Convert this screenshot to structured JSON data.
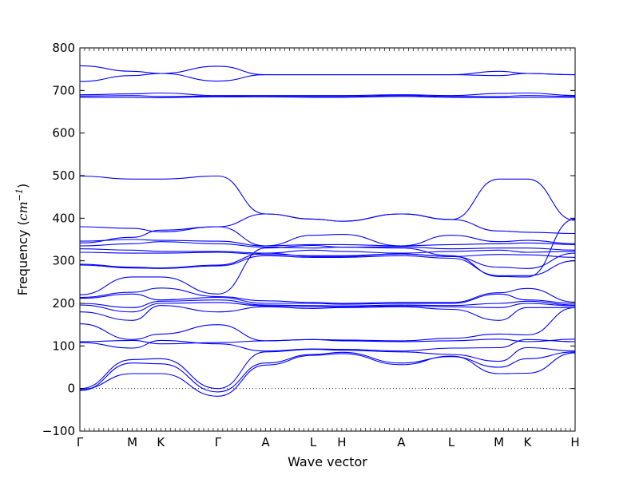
{
  "chart_data": {
    "type": "line",
    "xlabel": "Wave vector",
    "ylabel": "Frequency (cm⁻¹)",
    "ylabel_unit_base": "cm",
    "ylabel_unit_exp": "−1",
    "ylabel_prefix": "Frequency (",
    "ylabel_suffix": ")",
    "ylim": [
      -100,
      800
    ],
    "yticks": [
      {
        "value": -100,
        "label": "−100"
      },
      {
        "value": 0,
        "label": "0"
      },
      {
        "value": 100,
        "label": "100"
      },
      {
        "value": 200,
        "label": "200"
      },
      {
        "value": 300,
        "label": "300"
      },
      {
        "value": 400,
        "label": "400"
      },
      {
        "value": 500,
        "label": "500"
      },
      {
        "value": 600,
        "label": "600"
      },
      {
        "value": 700,
        "label": "700"
      },
      {
        "value": 800,
        "label": "800"
      }
    ],
    "xlim": [
      0,
      10.4
    ],
    "high_symmetry_points": [
      {
        "x": 0.0,
        "label": "Γ"
      },
      {
        "x": 1.1,
        "label": "M"
      },
      {
        "x": 1.7,
        "label": "K"
      },
      {
        "x": 2.9,
        "label": "Γ"
      },
      {
        "x": 3.9,
        "label": "A"
      },
      {
        "x": 4.9,
        "label": "L"
      },
      {
        "x": 5.5,
        "label": "H"
      },
      {
        "x": 6.75,
        "label": "A"
      },
      {
        "x": 7.8,
        "label": "L"
      },
      {
        "x": 8.8,
        "label": "M"
      },
      {
        "x": 9.4,
        "label": "K"
      },
      {
        "x": 10.4,
        "label": "H"
      }
    ],
    "zero_line": true,
    "line_color": "#0000ff",
    "bands": [
      {
        "x": [
          0,
          1.1,
          1.7,
          2.9,
          3.9,
          4.9,
          5.5,
          6.75,
          7.8,
          8.8,
          9.4,
          10.4
        ],
        "y": [
          758,
          745,
          740,
          757,
          737,
          737,
          737,
          737,
          737,
          735,
          740,
          737
        ]
      },
      {
        "x": [
          0,
          1.1,
          1.7,
          2.9,
          3.9,
          4.9,
          5.5,
          6.75,
          7.8,
          8.8,
          9.4,
          10.4
        ],
        "y": [
          721,
          735,
          740,
          722,
          737,
          737,
          737,
          737,
          737,
          745,
          740,
          737
        ]
      },
      {
        "x": [
          0,
          1.1,
          1.7,
          2.9,
          3.9,
          4.9,
          5.5,
          6.75,
          7.8,
          8.8,
          9.4,
          10.4
        ],
        "y": [
          690,
          692,
          694,
          688,
          688,
          688,
          688,
          690,
          688,
          693,
          694,
          688
        ]
      },
      {
        "x": [
          0,
          1.1,
          1.7,
          2.9,
          3.9,
          4.9,
          5.5,
          6.75,
          7.8,
          8.8,
          9.4,
          10.4
        ],
        "y": [
          687,
          688,
          686,
          687,
          686,
          686,
          686,
          688,
          686,
          686,
          688,
          686
        ]
      },
      {
        "x": [
          0,
          1.1,
          1.7,
          2.9,
          3.9,
          4.9,
          5.5,
          6.75,
          7.8,
          8.8,
          9.4,
          10.4
        ],
        "y": [
          684,
          684,
          683,
          685,
          685,
          684,
          684,
          686,
          684,
          683,
          684,
          684
        ]
      },
      {
        "x": [
          0,
          1.1,
          1.7,
          2.9,
          3.9,
          4.9,
          5.5,
          6.75,
          7.8,
          8.8,
          9.4,
          10.4
        ],
        "y": [
          499,
          492,
          492,
          499,
          410,
          398,
          393,
          410,
          397,
          492,
          492,
          395
        ]
      },
      {
        "x": [
          0,
          1.1,
          1.7,
          2.9,
          3.9,
          4.9,
          5.5,
          6.75,
          7.8,
          8.8,
          9.4,
          10.4
        ],
        "y": [
          380,
          376,
          368,
          380,
          410,
          398,
          393,
          410,
          397,
          370,
          367,
          364
        ]
      },
      {
        "x": [
          0,
          1.1,
          1.7,
          2.9,
          3.9,
          4.9,
          5.5,
          6.75,
          7.8,
          8.8,
          9.4,
          10.4
        ],
        "y": [
          346,
          350,
          348,
          346,
          335,
          360,
          362,
          335,
          360,
          345,
          348,
          340
        ]
      },
      {
        "x": [
          0,
          1.1,
          1.7,
          2.9,
          3.9,
          4.9,
          5.5,
          6.75,
          7.8,
          8.8,
          9.4,
          10.4
        ],
        "y": [
          342,
          355,
          372,
          380,
          335,
          338,
          338,
          335,
          338,
          340,
          342,
          338
        ]
      },
      {
        "x": [
          0,
          1.1,
          1.7,
          2.9,
          3.9,
          4.9,
          5.5,
          6.75,
          7.8,
          8.8,
          9.4,
          10.4
        ],
        "y": [
          335,
          340,
          345,
          340,
          332,
          330,
          332,
          333,
          328,
          330,
          330,
          325
        ]
      },
      {
        "x": [
          0,
          1.1,
          1.7,
          2.9,
          3.9,
          4.9,
          5.5,
          6.75,
          7.8,
          8.8,
          9.4,
          10.4
        ],
        "y": [
          328,
          325,
          322,
          322,
          318,
          325,
          322,
          318,
          322,
          325,
          320,
          322
        ]
      },
      {
        "x": [
          0,
          1.1,
          1.7,
          2.9,
          3.9,
          4.9,
          5.5,
          6.75,
          7.8,
          8.8,
          9.4,
          10.4
        ],
        "y": [
          320,
          318,
          318,
          320,
          315,
          312,
          312,
          316,
          310,
          315,
          314,
          308
        ]
      },
      {
        "x": [
          0,
          1.1,
          1.7,
          2.9,
          3.9,
          4.9,
          5.5,
          6.75,
          7.8,
          8.8,
          9.4,
          10.4
        ],
        "y": [
          292,
          285,
          283,
          290,
          318,
          310,
          310,
          316,
          310,
          285,
          282,
          318
        ]
      },
      {
        "x": [
          0,
          1.1,
          1.7,
          2.9,
          3.9,
          4.9,
          5.5,
          6.75,
          7.8,
          8.8,
          9.4,
          10.4
        ],
        "y": [
          290,
          283,
          282,
          288,
          312,
          308,
          308,
          312,
          306,
          265,
          265,
          300
        ]
      },
      {
        "x": [
          0,
          1.1,
          1.7,
          2.9,
          3.9,
          4.9,
          5.5,
          6.75,
          7.8,
          8.8,
          9.4,
          10.4
        ],
        "y": [
          220,
          262,
          262,
          222,
          330,
          336,
          332,
          330,
          312,
          263,
          262,
          398
        ]
      },
      {
        "x": [
          0,
          1.1,
          1.7,
          2.9,
          3.9,
          4.9,
          5.5,
          6.75,
          7.8,
          8.8,
          9.4,
          10.4
        ],
        "y": [
          214,
          226,
          236,
          216,
          206,
          202,
          200,
          202,
          202,
          225,
          235,
          203
        ]
      },
      {
        "x": [
          0,
          1.1,
          1.7,
          2.9,
          3.9,
          4.9,
          5.5,
          6.75,
          7.8,
          8.8,
          9.4,
          10.4
        ],
        "y": [
          212,
          222,
          208,
          214,
          200,
          200,
          198,
          200,
          200,
          222,
          208,
          200
        ]
      },
      {
        "x": [
          0,
          1.1,
          1.7,
          2.9,
          3.9,
          4.9,
          5.5,
          6.75,
          7.8,
          8.8,
          9.4,
          10.4
        ],
        "y": [
          200,
          190,
          205,
          208,
          196,
          195,
          194,
          196,
          195,
          200,
          205,
          196
        ]
      },
      {
        "x": [
          0,
          1.1,
          1.7,
          2.9,
          3.9,
          4.9,
          5.5,
          6.75,
          7.8,
          8.8,
          9.4,
          10.4
        ],
        "y": [
          196,
          180,
          200,
          202,
          194,
          192,
          192,
          194,
          192,
          190,
          200,
          194
        ]
      },
      {
        "x": [
          0,
          1.1,
          1.7,
          2.9,
          3.9,
          4.9,
          5.5,
          6.75,
          7.8,
          8.8,
          9.4,
          10.4
        ],
        "y": [
          180,
          160,
          195,
          180,
          192,
          188,
          190,
          192,
          186,
          160,
          190,
          190
        ]
      },
      {
        "x": [
          0,
          1.1,
          1.7,
          2.9,
          3.9,
          4.9,
          5.5,
          6.75,
          7.8,
          8.8,
          9.4,
          10.4
        ],
        "y": [
          152,
          115,
          128,
          150,
          112,
          115,
          114,
          112,
          118,
          128,
          126,
          190
        ]
      },
      {
        "x": [
          0,
          1.1,
          1.7,
          2.9,
          3.9,
          4.9,
          5.5,
          6.75,
          7.8,
          8.8,
          9.4,
          10.4
        ],
        "y": [
          110,
          113,
          105,
          108,
          112,
          115,
          112,
          110,
          112,
          116,
          110,
          116
        ]
      },
      {
        "x": [
          0,
          1.1,
          1.7,
          2.9,
          3.9,
          4.9,
          5.5,
          6.75,
          7.8,
          8.8,
          9.4,
          10.4
        ],
        "y": [
          108,
          95,
          113,
          105,
          88,
          93,
          92,
          88,
          95,
          96,
          115,
          110
        ]
      },
      {
        "x": [
          0,
          1.1,
          1.7,
          2.9,
          3.9,
          4.9,
          5.5,
          6.75,
          7.8,
          8.8,
          9.4,
          10.4
        ],
        "y": [
          0,
          68,
          70,
          0,
          86,
          92,
          90,
          86,
          80,
          64,
          96,
          88
        ]
      },
      {
        "x": [
          0,
          1.1,
          1.7,
          2.9,
          3.9,
          4.9,
          5.5,
          6.75,
          7.8,
          8.8,
          9.4,
          10.4
        ],
        "y": [
          -5,
          60,
          58,
          -8,
          60,
          80,
          85,
          60,
          75,
          50,
          70,
          86
        ]
      },
      {
        "x": [
          0,
          1.1,
          1.7,
          2.9,
          3.9,
          4.9,
          5.5,
          6.75,
          7.8,
          8.8,
          9.4,
          10.4
        ],
        "y": [
          -2,
          35,
          35,
          -18,
          55,
          78,
          82,
          56,
          76,
          35,
          36,
          84
        ]
      }
    ]
  }
}
